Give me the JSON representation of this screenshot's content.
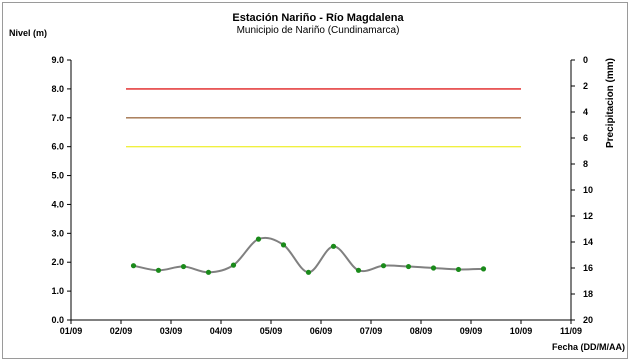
{
  "chart_data": {
    "type": "line",
    "title": "Estación Nariño  - Río Magdalena",
    "subtitle": "Municipio de Nariño (Cundinamarca)",
    "ylabel": "Nivel (m)",
    "y2label": "Precipitacion (mm)",
    "xlabel": "Fecha (DD/M/AA)",
    "ylim": [
      0,
      9
    ],
    "y2lim": [
      0,
      20
    ],
    "y2_reversed": true,
    "ytick_labels": [
      "0.0",
      "1.0",
      "2.0",
      "3.0",
      "4.0",
      "5.0",
      "6.0",
      "7.0",
      "8.0",
      "9.0"
    ],
    "y2tick_labels": [
      "0",
      "2",
      "4",
      "6",
      "8",
      "10",
      "12",
      "14",
      "16",
      "18",
      "20"
    ],
    "xtick_labels": [
      "01/09",
      "02/09",
      "03/09",
      "04/09",
      "05/09",
      "06/09",
      "07/09",
      "08/09",
      "09/09",
      "10/09",
      "11/09"
    ],
    "xlim": [
      1,
      11
    ],
    "grid": false,
    "legend": "none",
    "threshold_lines": [
      {
        "value": 8.0,
        "color": "#e02020"
      },
      {
        "value": 7.0,
        "color": "#a0704a"
      },
      {
        "value": 6.0,
        "color": "#f0f040"
      }
    ],
    "threshold_range": [
      2.1,
      10.0
    ],
    "series": [
      {
        "color": "#808080",
        "marker_color": "#1a8a1a",
        "x": [
          2.25,
          2.75,
          3.25,
          3.75,
          4.25,
          4.75,
          5.25,
          5.75,
          6.25,
          6.75,
          7.25,
          7.75,
          8.25,
          8.75,
          9.25
        ],
        "values": [
          1.88,
          1.72,
          1.85,
          1.65,
          1.9,
          2.8,
          2.6,
          1.65,
          2.55,
          1.72,
          1.88,
          1.85,
          1.8,
          1.75,
          1.77
        ]
      }
    ]
  }
}
